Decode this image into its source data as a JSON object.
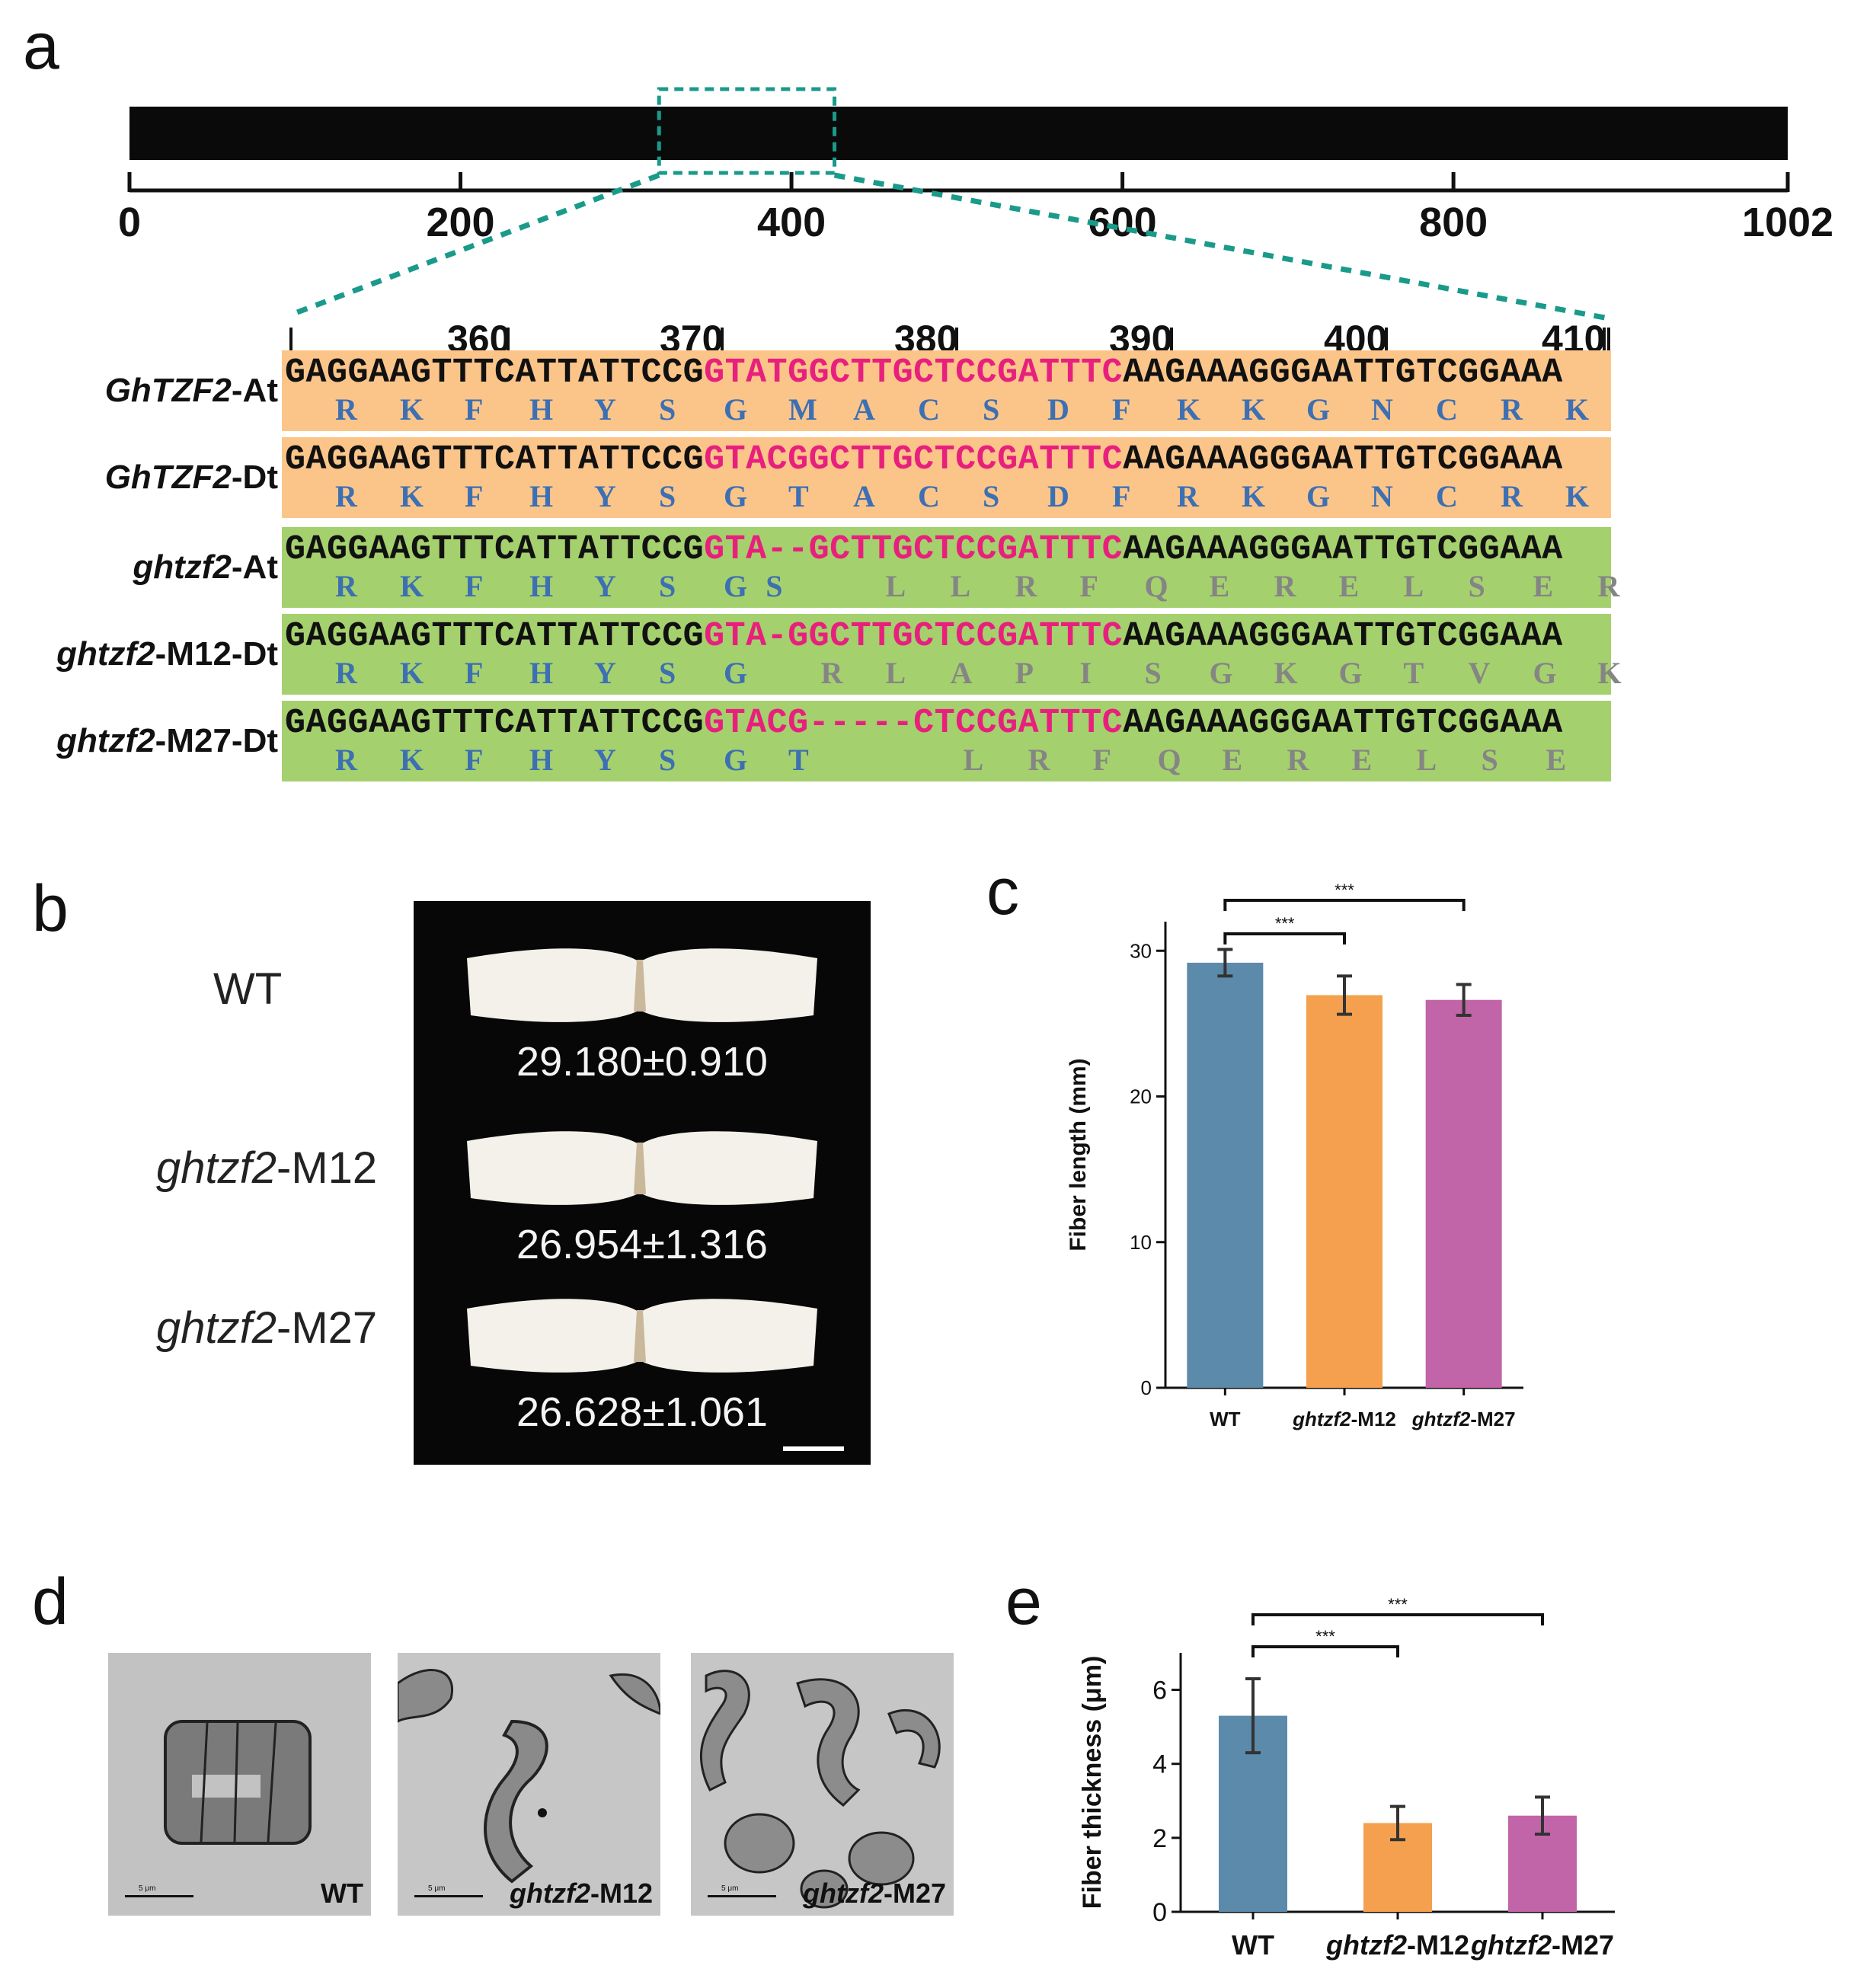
{
  "panels": {
    "a": "a",
    "b": "b",
    "c": "c",
    "d": "d",
    "e": "e"
  },
  "panel_a": {
    "gene_axis_ticks": [
      "0",
      "200",
      "400",
      "600",
      "800",
      "1002"
    ],
    "gene_axis": {
      "min": 0,
      "max": 1002,
      "zoom_start": 320,
      "zoom_end": 426
    },
    "ruler_ticks": [
      "360",
      "370",
      "380",
      "390",
      "400",
      "410"
    ],
    "rows": [
      {
        "name_italic": "GhTZF2",
        "name_rest": "-At",
        "box": "orange",
        "dna_pre": "GAGGAAGTTTCATTATTCCG",
        "dna_pink": "GTATGGCTTGCTCCGATTTC",
        "dna_post": "AAGAAAGGGAATTGTCGGAAA",
        "aa": [
          "R",
          "K",
          "F",
          "H",
          "Y",
          "S",
          "G",
          "M",
          "A",
          "C",
          "S",
          "D",
          "F",
          "K",
          "K",
          "G",
          "N",
          "C",
          "R",
          "K"
        ],
        "aa_pos": [
          0,
          1,
          2,
          3,
          4,
          5,
          6,
          7,
          8,
          9,
          10,
          11,
          12,
          13,
          14,
          15,
          16,
          17,
          18,
          19
        ],
        "aa_gray_from": 99
      },
      {
        "name_italic": "GhTZF2",
        "name_rest": "-Dt",
        "box": "orange",
        "dna_pre": "GAGGAAGTTTCATTATTCCG",
        "dna_pink": "GTACGGCTTGCTCCGATTTC",
        "dna_post": "AAGAAAGGGAATTGTCGGAAA",
        "aa": [
          "R",
          "K",
          "F",
          "H",
          "Y",
          "S",
          "G",
          "T",
          "A",
          "C",
          "S",
          "D",
          "F",
          "R",
          "K",
          "G",
          "N",
          "C",
          "R",
          "K"
        ],
        "aa_pos": [
          0,
          1,
          2,
          3,
          4,
          5,
          6,
          7,
          8,
          9,
          10,
          11,
          12,
          13,
          14,
          15,
          16,
          17,
          18,
          19
        ],
        "aa_gray_from": 99
      },
      {
        "name_italic": "ghtzf2",
        "name_rest": "-At",
        "box": "green",
        "dna_pre": "GAGGAAGTTTCATTATTCCG",
        "dna_pink": "GTA--GCTTGCTCCGATTTC",
        "dna_post": "AAGAAAGGGAATTGTCGGAAA",
        "aa": [
          "R",
          "K",
          "F",
          "H",
          "Y",
          "S",
          "G",
          "S",
          "L",
          "L",
          "R",
          "F",
          "Q",
          "E",
          "R",
          "E",
          "L",
          "S",
          "E",
          "R"
        ],
        "aa_pos": [
          0,
          1,
          2,
          3,
          4,
          5,
          6,
          6.65,
          8.5,
          9.5,
          10.5,
          11.5,
          12.5,
          13.5,
          14.5,
          15.5,
          16.5,
          17.5,
          18.5,
          19.5
        ],
        "aa_gray_from": 8
      },
      {
        "name_italic": "ghtzf2",
        "name_rest": "-M12-Dt",
        "box": "green",
        "dna_pre": "GAGGAAGTTTCATTATTCCG",
        "dna_pink": "GTA-GGCTTGCTCCGATTTC",
        "dna_post": "AAGAAAGGGAATTGTCGGAAA",
        "aa": [
          "R",
          "K",
          "F",
          "H",
          "Y",
          "S",
          "G",
          "R",
          "L",
          "A",
          "P",
          "I",
          "S",
          "G",
          "K",
          "G",
          "T",
          "V",
          "G",
          "K"
        ],
        "aa_pos": [
          0,
          1,
          2,
          3,
          4,
          5,
          6,
          7.5,
          8.5,
          9.5,
          10.5,
          11.5,
          12.5,
          13.5,
          14.5,
          15.5,
          16.5,
          17.5,
          18.5,
          19.5
        ],
        "aa_gray_from": 7
      },
      {
        "name_italic": "ghtzf2",
        "name_rest": "-M27-Dt",
        "box": "green",
        "dna_pre": "GAGGAAGTTTCATTATTCCG",
        "dna_pink": "GTACG-----CTCCGATTTC",
        "dna_post": "AAGAAAGGGAATTGTCGGAAA",
        "aa": [
          "R",
          "K",
          "F",
          "H",
          "Y",
          "S",
          "G",
          "T",
          "L",
          "R",
          "F",
          "Q",
          "E",
          "R",
          "E",
          "L",
          "S",
          "E"
        ],
        "aa_pos": [
          0,
          1,
          2,
          3,
          4,
          5,
          6,
          7,
          9.7,
          10.7,
          11.7,
          12.7,
          13.7,
          14.7,
          15.7,
          16.7,
          17.7,
          18.7
        ],
        "aa_gray_from": 8
      }
    ]
  },
  "panel_b": {
    "genotypes": [
      {
        "italic": "",
        "rest": "WT"
      },
      {
        "italic": "ghtzf2",
        "rest": "-M12"
      },
      {
        "italic": "ghtzf2",
        "rest": "-M27"
      }
    ],
    "measurements": [
      "29.180±0.910",
      "26.954±1.316",
      "26.628±1.061"
    ]
  },
  "panel_d": {
    "images": [
      {
        "italic": "",
        "rest": "WT"
      },
      {
        "italic": "ghtzf2",
        "rest": "-M12"
      },
      {
        "italic": "ghtzf2",
        "rest": "-M27"
      }
    ],
    "scale_text": "5 μm"
  },
  "chart_data": [
    {
      "id": "c",
      "type": "bar",
      "categories": [
        "WT",
        "ghtzf2-M12",
        "ghtzf2-M27"
      ],
      "values": [
        29.18,
        26.954,
        26.628
      ],
      "errors": [
        0.91,
        1.316,
        1.061
      ],
      "colors": [
        "#5b8aaa",
        "#f5a04e",
        "#c264a8"
      ],
      "ylabel": "Fiber length (mm)",
      "ylim": [
        0,
        32
      ],
      "yticks": [
        0,
        10,
        20,
        30
      ],
      "significance": [
        {
          "from": 0,
          "to": 1,
          "label": "***"
        },
        {
          "from": 0,
          "to": 2,
          "label": "***"
        }
      ]
    },
    {
      "id": "e",
      "type": "bar",
      "categories": [
        "WT",
        "ghtzf2-M12",
        "ghtzf2-M27"
      ],
      "values": [
        5.3,
        2.4,
        2.6
      ],
      "errors": [
        1.0,
        0.45,
        0.5
      ],
      "colors": [
        "#5b8aaa",
        "#f5a04e",
        "#c264a8"
      ],
      "ylabel": "Fiber thickness (μm)",
      "ylim": [
        0,
        7
      ],
      "yticks": [
        0,
        2,
        4,
        6
      ],
      "significance": [
        {
          "from": 0,
          "to": 1,
          "label": "***"
        },
        {
          "from": 0,
          "to": 2,
          "label": "***"
        }
      ]
    }
  ]
}
